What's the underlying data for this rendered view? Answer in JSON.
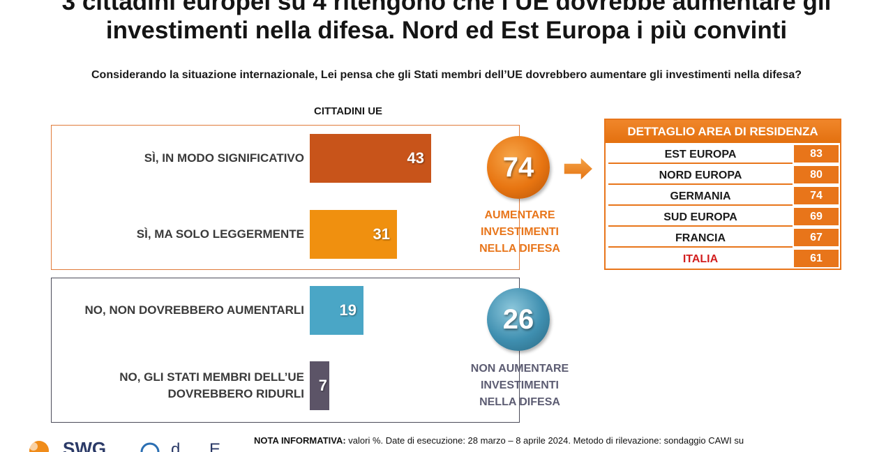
{
  "title": {
    "line1": "3 cittadini europei su 4 ritengono che l’UE dovrebbe aumentare gli",
    "line2": "investimenti nella difesa. Nord ed Est Europa i più convinti"
  },
  "question": "Considerando la situazione internazionale, Lei pensa che gli Stati membri dell’UE dovrebbero aumentare gli investimenti nella difesa?",
  "group_label": "CITTADINI UE",
  "colors": {
    "dark_orange": "#c8541a",
    "orange": "#f0900f",
    "light_blue": "#4aa6c6",
    "dark_purple": "#5c5467",
    "accent": "#e8751a"
  },
  "summary": {
    "yes_total": "74",
    "yes_caption": [
      "AUMENTARE",
      "INVESTIMENTI",
      "NELLA DIFESA"
    ],
    "no_total": "26",
    "no_caption": [
      "NON AUMENTARE",
      "INVESTIMENTI",
      "NELLA DIFESA"
    ]
  },
  "area_table": {
    "header": "DETTAGLIO AREA DI RESIDENZA",
    "rows": [
      {
        "name": "EST EUROPA",
        "value": "83"
      },
      {
        "name": "NORD EUROPA",
        "value": "80"
      },
      {
        "name": "GERMANIA",
        "value": "74"
      },
      {
        "name": "SUD EUROPA",
        "value": "69"
      },
      {
        "name": "FRANCIA",
        "value": "67"
      },
      {
        "name": "ITALIA",
        "value": "61",
        "highlight_color": "#d21e1e"
      }
    ]
  },
  "note": {
    "label": "NOTA INFORMATIVA:",
    "text": "valori %. Date di esecuzione: 28 marzo – 8 aprile 2024. Metodo di rilevazione: sondaggio CAWI su"
  },
  "chart_data": {
    "type": "bar",
    "orientation": "horizontal",
    "categories": [
      "SÌ, IN MODO SIGNIFICATIVO",
      "SÌ, MA SOLO LEGGERMENTE",
      "NO, NON DOVREBBERO AUMENTARLI",
      "NO, GLI STATI MEMBRI DELL’UE DOVREBBERO RIDURLI"
    ],
    "values": [
      43,
      31,
      19,
      7
    ],
    "bar_colors": [
      "#c8541a",
      "#f0900f",
      "#4aa6c6",
      "#5c5467"
    ],
    "title": "CITTADINI UE",
    "xlim": [
      0,
      100
    ]
  }
}
